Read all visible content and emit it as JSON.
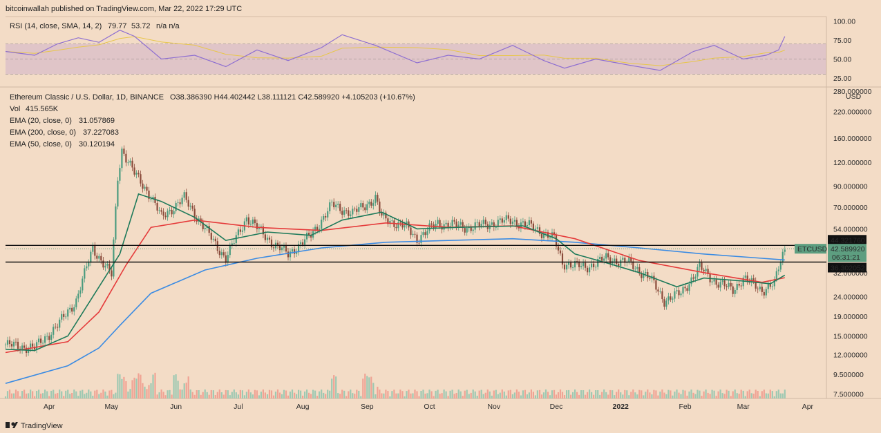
{
  "header": {
    "published": "bitcoinwallah published on TradingView.com, Mar 22, 2022 17:29 UTC"
  },
  "footer": {
    "brand": "TradingView"
  },
  "colors": {
    "background": "#f3dcc6",
    "rsi_line": "#8e6fd1",
    "rsi_sma": "#e8c64a",
    "rsi_band": "#e0c5c8",
    "ema20": "#1e7a5a",
    "ema200": "#3a8be3",
    "ema50": "#e53a3a",
    "candle_up": "#4a9b7e",
    "candle_down": "#8a4a3a",
    "vol_up": "#9ec9b2",
    "vol_down": "#f0a394",
    "price_tag": "#5d9e80"
  },
  "rsi_panel": {
    "label": "RSI (14, close, SMA, 14, 2)",
    "rsi_value": "79.77",
    "sma_value": "53.72",
    "extra": "n/a  n/a",
    "axis_ticks": [
      "100.00",
      "75.00",
      "50.00",
      "25.00"
    ]
  },
  "legend": {
    "symbol_line": "Ethereum Classic / U.S. Dollar, 1D, BINANCE",
    "ohlc": "O38.386390  H44.402442  L38.111121  C42.589920  +4.105203 (+10.67%)",
    "vol_label": "Vol",
    "vol_value": "415.565K",
    "ema20_label": "EMA (20, close, 0)",
    "ema20_value": "31.057869",
    "ema200_label": "EMA (200, close, 0)",
    "ema200_value": "37.227083",
    "ema50_label": "EMA (50, close, 0)",
    "ema50_value": "30.120194"
  },
  "price_axis": {
    "unit": "USD",
    "ticks": [
      "280.000000",
      "220.000000",
      "160.000000",
      "120.000000",
      "90.000000",
      "70.000000",
      "54.000000",
      "32.000000",
      "24.000000",
      "19.000000",
      "15.000000",
      "12.000000",
      "9.500000",
      "7.500000"
    ],
    "tag_resistance": "44.321760",
    "tag_price": "42.589920",
    "tag_countdown": "06:31:21",
    "tag_support": "36.302052",
    "tag_symbol": "ETCUSD"
  },
  "time_axis": {
    "ticks": [
      "Apr",
      "May",
      "Jun",
      "Jul",
      "Aug",
      "Sep",
      "Oct",
      "Nov",
      "Dec",
      "2022",
      "Feb",
      "Mar",
      "Apr"
    ]
  },
  "chart_data": {
    "type": "line",
    "title": "Ethereum Classic / U.S. Dollar, 1D, BINANCE",
    "y_scale": "log",
    "ylim": [
      7.1,
      290
    ],
    "x_domain": [
      "2021-03-11",
      "2022-04-10"
    ],
    "horizontal_levels": [
      44.32176,
      36.302052
    ],
    "last_price": 42.58992,
    "series": [
      {
        "name": "ETCUSD",
        "x": [
          "2021-03-11",
          "2021-03-25",
          "2021-04-05",
          "2021-04-14",
          "2021-04-22",
          "2021-05-01",
          "2021-05-04",
          "2021-05-06",
          "2021-05-12",
          "2021-05-20",
          "2021-05-25",
          "2021-06-05",
          "2021-06-20",
          "2021-06-25",
          "2021-07-05",
          "2021-07-18",
          "2021-07-25",
          "2021-08-05",
          "2021-08-15",
          "2021-08-25",
          "2021-09-05",
          "2021-09-08",
          "2021-09-20",
          "2021-09-25",
          "2021-10-05",
          "2021-10-20",
          "2021-11-09",
          "2021-11-20",
          "2021-11-30",
          "2021-12-04",
          "2021-12-15",
          "2021-12-25",
          "2022-01-05",
          "2022-01-15",
          "2022-01-22",
          "2022-01-30",
          "2022-02-08",
          "2022-02-15",
          "2022-02-24",
          "2022-03-01",
          "2022-03-10",
          "2022-03-16",
          "2022-03-19",
          "2022-03-21"
        ],
        "values": [
          13.5,
          13.0,
          17.0,
          23.0,
          43.0,
          31.0,
          100.0,
          140.0,
          105.0,
          80.0,
          62.0,
          78.0,
          45.0,
          38.0,
          62.0,
          45.0,
          40.0,
          50.0,
          72.0,
          65.0,
          78.0,
          62.0,
          55.0,
          48.0,
          58.0,
          55.0,
          60.0,
          55.0,
          48.0,
          36.0,
          34.0,
          38.0,
          36.0,
          30.0,
          23.0,
          25.0,
          34.0,
          29.0,
          26.0,
          30.0,
          26.0,
          28.0,
          37.0,
          42.59
        ]
      },
      {
        "name": "EMA (20, close, 0)",
        "x": [
          "2021-03-11",
          "2021-03-25",
          "2021-04-10",
          "2021-04-22",
          "2021-05-05",
          "2021-05-14",
          "2021-05-25",
          "2021-06-10",
          "2021-06-25",
          "2021-07-15",
          "2021-08-05",
          "2021-08-20",
          "2021-09-08",
          "2021-09-25",
          "2021-10-15",
          "2021-11-15",
          "2021-12-01",
          "2021-12-10",
          "2021-12-25",
          "2022-01-10",
          "2022-01-28",
          "2022-02-10",
          "2022-02-28",
          "2022-03-14",
          "2022-03-21"
        ],
        "values": [
          12.8,
          12.6,
          15.0,
          24.0,
          40.0,
          82.0,
          75.0,
          62.0,
          47.0,
          52.0,
          50.0,
          60.0,
          66.0,
          54.0,
          55.0,
          56.0,
          48.0,
          40.0,
          36.0,
          32.0,
          27.0,
          30.0,
          29.0,
          28.0,
          31.06
        ]
      },
      {
        "name": "EMA (200, close, 0)",
        "x": [
          "2021-03-11",
          "2021-04-10",
          "2021-04-25",
          "2021-05-05",
          "2021-05-20",
          "2021-06-15",
          "2021-07-10",
          "2021-08-10",
          "2021-09-10",
          "2021-10-10",
          "2021-11-10",
          "2021-12-10",
          "2022-01-10",
          "2022-02-10",
          "2022-03-10",
          "2022-03-21"
        ],
        "values": [
          8.5,
          10.5,
          13.0,
          17.0,
          25.0,
          33.0,
          38.0,
          43.0,
          46.0,
          47.0,
          48.0,
          46.0,
          43.0,
          40.0,
          38.0,
          37.23
        ]
      },
      {
        "name": "EMA (50, close, 0)",
        "x": [
          "2021-03-11",
          "2021-04-10",
          "2021-04-25",
          "2021-05-08",
          "2021-05-20",
          "2021-06-10",
          "2021-07-10",
          "2021-08-10",
          "2021-09-10",
          "2021-10-10",
          "2021-11-10",
          "2021-12-10",
          "2022-01-10",
          "2022-02-10",
          "2022-03-10",
          "2022-03-21"
        ],
        "values": [
          12.3,
          14.0,
          20.0,
          35.0,
          55.0,
          60.0,
          55.0,
          53.0,
          58.0,
          55.0,
          56.0,
          48.0,
          37.0,
          32.0,
          28.5,
          30.12
        ]
      }
    ],
    "rsi": {
      "ylim": [
        15,
        105
      ],
      "bands": [
        30,
        50,
        70
      ],
      "x": [
        "2021-03-11",
        "2021-03-25",
        "2021-04-05",
        "2021-04-15",
        "2021-04-25",
        "2021-05-05",
        "2021-05-12",
        "2021-05-25",
        "2021-06-10",
        "2021-06-25",
        "2021-07-10",
        "2021-07-25",
        "2021-08-10",
        "2021-08-20",
        "2021-09-05",
        "2021-09-25",
        "2021-10-10",
        "2021-10-25",
        "2021-11-10",
        "2021-11-25",
        "2021-12-05",
        "2021-12-20",
        "2022-01-05",
        "2022-01-20",
        "2022-02-05",
        "2022-02-15",
        "2022-03-01",
        "2022-03-12",
        "2022-03-18",
        "2022-03-21"
      ],
      "values": [
        60,
        55,
        70,
        78,
        72,
        88,
        80,
        50,
        55,
        40,
        62,
        48,
        65,
        82,
        68,
        45,
        55,
        50,
        68,
        48,
        38,
        50,
        42,
        35,
        60,
        68,
        50,
        55,
        62,
        79.77
      ]
    }
  }
}
